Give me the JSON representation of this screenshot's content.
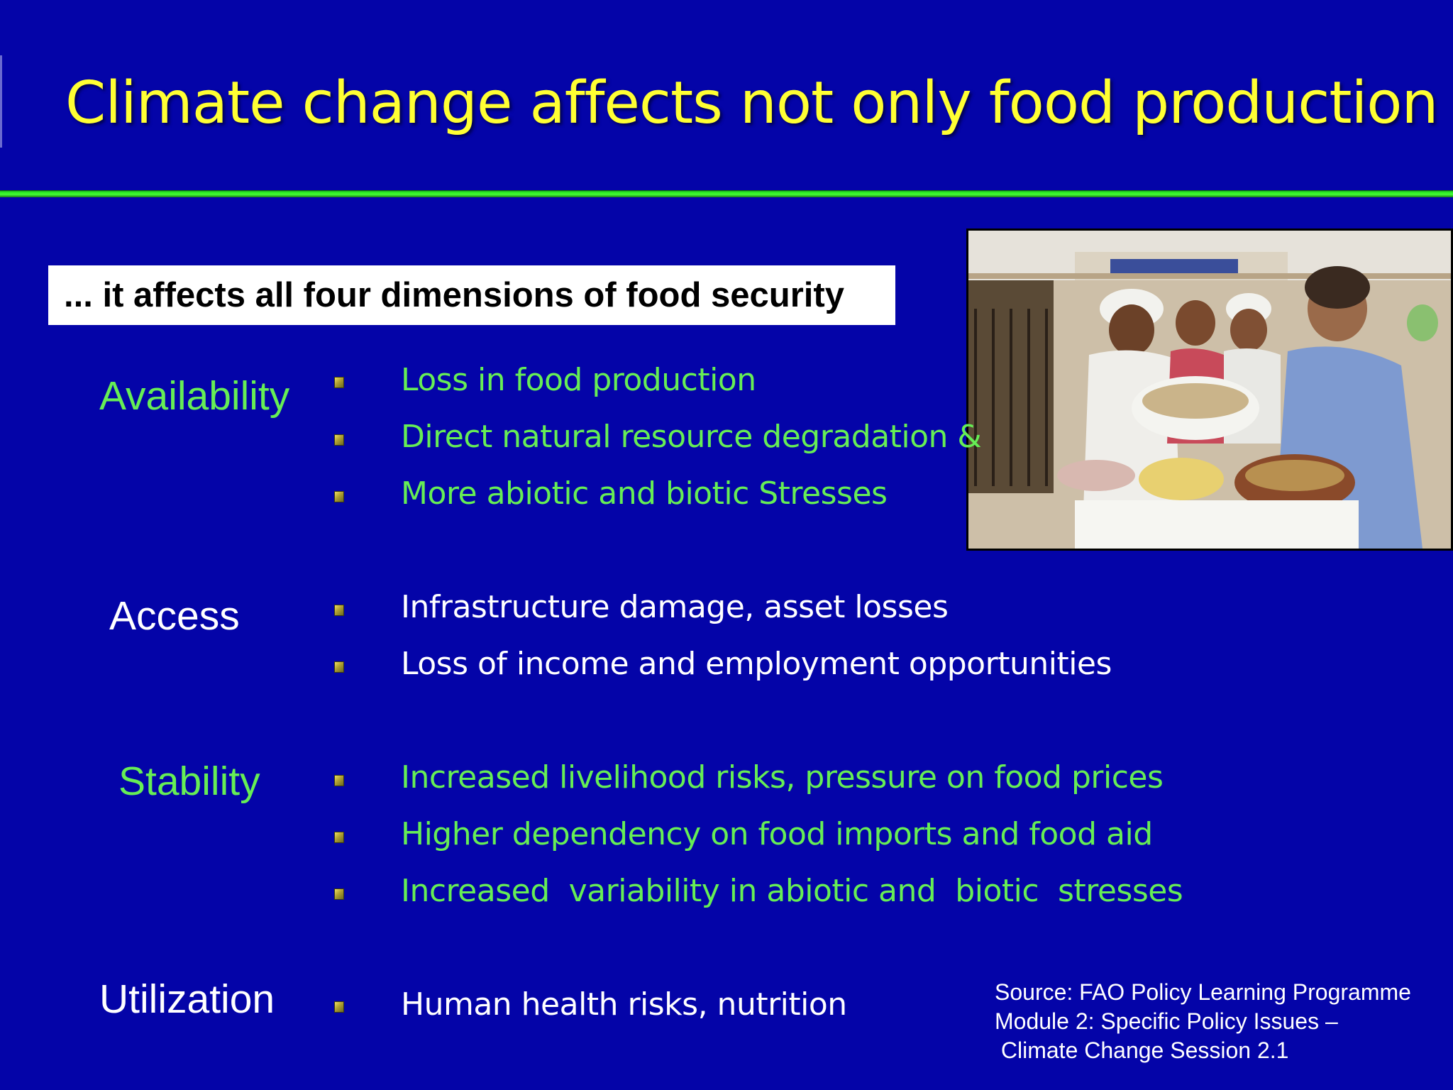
{
  "slide": {
    "title": "Climate change affects not only food production ...",
    "subtitle": "... it affects all four dimensions of food security",
    "dimensions": [
      {
        "name": "Availability",
        "items": [
          "Loss in food production",
          "Direct natural resource degradation &",
          "More abiotic and biotic Stresses"
        ]
      },
      {
        "name": "Access",
        "items": [
          "Infrastructure damage, asset losses",
          "Loss of income and employment opportunities"
        ]
      },
      {
        "name": "Stability",
        "items": [
          "Increased livelihood risks, pressure on food prices",
          "Higher dependency on food imports and food aid",
          "Increased  variability in abiotic and  biotic  stresses"
        ]
      },
      {
        "name": "Utilization",
        "items": [
          "Human health risks, nutrition"
        ]
      }
    ],
    "source": {
      "line1": "Source: FAO Policy Learning Programme",
      "line2": "Module 2: Specific Policy Issues –",
      "line3": " Climate Change Session 2.1"
    }
  },
  "colors": {
    "background": "#0404a8",
    "title": "#ffff33",
    "accent_green": "#66ee55",
    "rule_green": "#44ff33"
  },
  "photo": {
    "icon": "market-stall-photo-icon"
  }
}
